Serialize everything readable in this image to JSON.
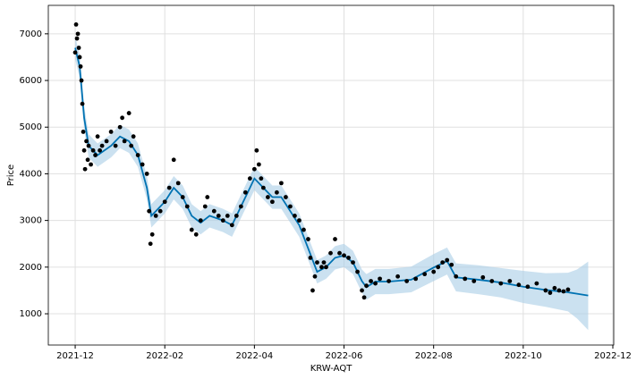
{
  "chart_data": {
    "type": "line",
    "x_label": "KRW-AQT",
    "y_label": "Price",
    "xlim": [
      -0.6,
      12.02
    ],
    "ylim": [
      330,
      7610
    ],
    "xticks": [
      {
        "value": 0,
        "label": "2021-12"
      },
      {
        "value": 2,
        "label": "2022-02"
      },
      {
        "value": 4,
        "label": "2022-04"
      },
      {
        "value": 6,
        "label": "2022-06"
      },
      {
        "value": 8,
        "label": "2022-08"
      },
      {
        "value": 10,
        "label": "2022-10"
      },
      {
        "value": 12,
        "label": "2022-12"
      }
    ],
    "yticks": [
      1000,
      2000,
      3000,
      4000,
      5000,
      6000,
      7000
    ],
    "grid": true,
    "series": [
      {
        "type": "band",
        "color": "#a8cde6",
        "x": [
          0,
          0.1,
          0.2,
          0.3,
          0.5,
          0.8,
          1.0,
          1.2,
          1.4,
          1.6,
          1.7,
          1.8,
          2.0,
          2.2,
          2.4,
          2.6,
          2.8,
          3.0,
          3.3,
          3.5,
          3.7,
          3.9,
          4.0,
          4.2,
          4.4,
          4.6,
          4.8,
          5.0,
          5.2,
          5.4,
          5.6,
          5.8,
          6.0,
          6.2,
          6.4,
          6.5,
          6.7,
          7.0,
          7.5,
          8.0,
          8.3,
          8.5,
          9.0,
          9.5,
          10.0,
          10.5,
          11.0,
          11.2,
          11.45
        ],
        "lower": [
          6450,
          6050,
          4950,
          4350,
          4150,
          4350,
          4550,
          4450,
          4150,
          3450,
          2850,
          2950,
          3150,
          3450,
          3250,
          2850,
          2700,
          2850,
          2750,
          2650,
          3050,
          3450,
          3650,
          3450,
          3250,
          3250,
          2950,
          2650,
          2150,
          1650,
          1750,
          1950,
          2000,
          1850,
          1450,
          1300,
          1420,
          1420,
          1460,
          1700,
          1840,
          1480,
          1420,
          1350,
          1230,
          1150,
          1050,
          900,
          650
        ],
        "upper": [
          6950,
          6550,
          5450,
          4850,
          4650,
          4850,
          5050,
          4950,
          4650,
          3950,
          3350,
          3450,
          3650,
          3950,
          3750,
          3350,
          3200,
          3350,
          3250,
          3150,
          3550,
          3950,
          4150,
          3950,
          3750,
          3750,
          3450,
          3150,
          2650,
          2150,
          2250,
          2450,
          2500,
          2350,
          1950,
          1850,
          1960,
          1960,
          2010,
          2280,
          2420,
          2080,
          2040,
          1980,
          1920,
          1870,
          1880,
          1950,
          2120
        ]
      },
      {
        "type": "line",
        "color": "#0072b2",
        "x": [
          0,
          0.1,
          0.2,
          0.3,
          0.5,
          0.8,
          1.0,
          1.2,
          1.4,
          1.6,
          1.7,
          1.8,
          2.0,
          2.2,
          2.4,
          2.6,
          2.8,
          3.0,
          3.3,
          3.5,
          3.7,
          3.9,
          4.0,
          4.2,
          4.4,
          4.6,
          4.8,
          5.0,
          5.2,
          5.4,
          5.6,
          5.8,
          6.0,
          6.2,
          6.4,
          6.5,
          6.7,
          7.0,
          7.5,
          8.0,
          8.3,
          8.5,
          9.0,
          9.5,
          10.0,
          10.5,
          11.0,
          11.2,
          11.45
        ],
        "values": [
          6700,
          6300,
          5200,
          4600,
          4400,
          4600,
          4800,
          4700,
          4400,
          3700,
          3100,
          3200,
          3400,
          3700,
          3500,
          3100,
          2950,
          3100,
          3000,
          2900,
          3300,
          3700,
          3900,
          3700,
          3500,
          3500,
          3200,
          2900,
          2400,
          1900,
          2000,
          2200,
          2250,
          2100,
          1700,
          1570,
          1690,
          1690,
          1730,
          1990,
          2130,
          1780,
          1730,
          1670,
          1580,
          1510,
          1460,
          1430,
          1390
        ]
      },
      {
        "type": "scatter",
        "color": "#000000",
        "x": [
          0,
          0.02,
          0.04,
          0.06,
          0.08,
          0.1,
          0.12,
          0.14,
          0.16,
          0.18,
          0.2,
          0.22,
          0.25,
          0.28,
          0.3,
          0.35,
          0.4,
          0.45,
          0.5,
          0.55,
          0.6,
          0.7,
          0.8,
          0.9,
          1.0,
          1.05,
          1.1,
          1.2,
          1.25,
          1.3,
          1.4,
          1.5,
          1.6,
          1.65,
          1.68,
          1.72,
          1.8,
          1.9,
          2.0,
          2.1,
          2.2,
          2.3,
          2.4,
          2.5,
          2.6,
          2.7,
          2.8,
          2.9,
          2.95,
          3.1,
          3.2,
          3.3,
          3.4,
          3.5,
          3.6,
          3.7,
          3.8,
          3.9,
          4.0,
          4.05,
          4.1,
          4.15,
          4.2,
          4.3,
          4.4,
          4.5,
          4.6,
          4.7,
          4.8,
          4.9,
          5.0,
          5.1,
          5.2,
          5.25,
          5.3,
          5.35,
          5.4,
          5.5,
          5.55,
          5.6,
          5.7,
          5.8,
          5.9,
          6.0,
          6.1,
          6.2,
          6.3,
          6.4,
          6.45,
          6.5,
          6.6,
          6.7,
          6.8,
          7.0,
          7.2,
          7.4,
          7.6,
          7.8,
          8.0,
          8.1,
          8.2,
          8.3,
          8.4,
          8.5,
          8.7,
          8.9,
          9.1,
          9.3,
          9.5,
          9.7,
          9.9,
          10.1,
          10.3,
          10.5,
          10.6,
          10.7,
          10.8,
          10.9,
          11.0
        ],
        "values": [
          6600,
          7200,
          6900,
          7000,
          6700,
          6500,
          6300,
          6000,
          5500,
          4900,
          4500,
          4100,
          4700,
          4300,
          4600,
          4200,
          4500,
          4400,
          4800,
          4500,
          4600,
          4700,
          4900,
          4600,
          5000,
          5200,
          4700,
          5300,
          4600,
          4800,
          4400,
          4200,
          4000,
          3200,
          2500,
          2700,
          3100,
          3200,
          3400,
          3700,
          4300,
          3800,
          3500,
          3300,
          2800,
          2700,
          3000,
          3300,
          3500,
          3200,
          3100,
          3000,
          3100,
          2900,
          3100,
          3300,
          3600,
          3900,
          4100,
          4500,
          4200,
          3900,
          3700,
          3500,
          3400,
          3600,
          3800,
          3500,
          3300,
          3100,
          3000,
          2800,
          2600,
          2200,
          1500,
          1800,
          2100,
          2000,
          2100,
          2000,
          2300,
          2600,
          2300,
          2250,
          2200,
          2100,
          1900,
          1500,
          1350,
          1600,
          1700,
          1650,
          1750,
          1700,
          1800,
          1700,
          1750,
          1850,
          1900,
          2000,
          2100,
          2150,
          2050,
          1800,
          1750,
          1700,
          1780,
          1700,
          1650,
          1700,
          1620,
          1580,
          1650,
          1500,
          1450,
          1550,
          1500,
          1480,
          1520
        ]
      }
    ]
  }
}
